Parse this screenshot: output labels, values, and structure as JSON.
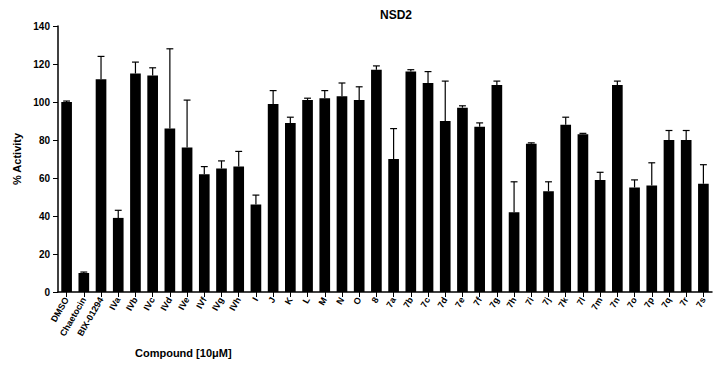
{
  "chart_data": {
    "type": "bar",
    "title": "NSD2",
    "x_label": "Compound [10μM]",
    "y_label": "% Activity",
    "categories": [
      "DMSO",
      "Chaetocin",
      "BIX-01294",
      "IVa",
      "IVb",
      "IVc",
      "IVd",
      "IVe",
      "IVf",
      "IVg",
      "IVh",
      "I",
      "J",
      "K",
      "L",
      "M",
      "N",
      "O",
      "8",
      "7a",
      "7b",
      "7c",
      "7d",
      "7e",
      "7f",
      "7g",
      "7h",
      "7i",
      "7j",
      "7k",
      "7l",
      "7m",
      "7n",
      "7o",
      "7p",
      "7q",
      "7r",
      "7s"
    ],
    "values": [
      100,
      10,
      112,
      39,
      115,
      114,
      86,
      76,
      62,
      65,
      66,
      46,
      99,
      89,
      101,
      102,
      103,
      101,
      117,
      70,
      116,
      110,
      90,
      97,
      87,
      109,
      42,
      78,
      53,
      88,
      83,
      59,
      109,
      55,
      56,
      80,
      80,
      57
    ],
    "errors": [
      0.5,
      0.5,
      12,
      4,
      6,
      4,
      42,
      25,
      4,
      4,
      8,
      5,
      7,
      3,
      1,
      4,
      7,
      7,
      2,
      16,
      1,
      6,
      21,
      1,
      2,
      2,
      16,
      0.5,
      5,
      4,
      0.5,
      4,
      2,
      4,
      12,
      5,
      5,
      10
    ],
    "color": "#000000",
    "ylim": [
      0,
      140
    ],
    "yticks": [
      0,
      20,
      40,
      60,
      80,
      100,
      120,
      140
    ],
    "grid": false
  }
}
